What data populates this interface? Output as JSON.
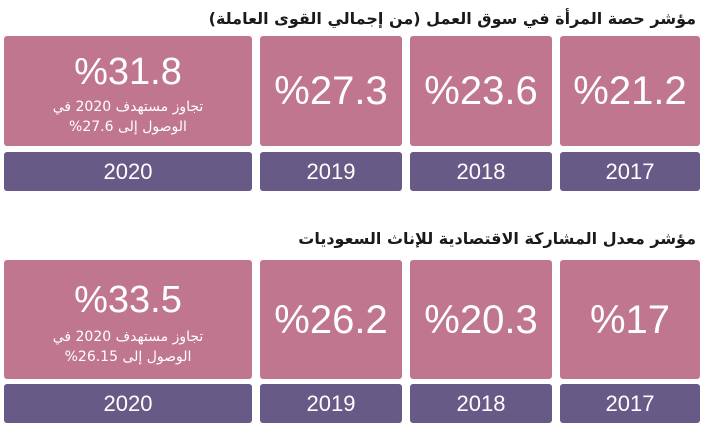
{
  "section1": {
    "title": "مؤشر حصة المرأة في سوق العمل (من إجمالي القوى العاملة)",
    "cards": [
      {
        "value": "%31.8",
        "note_line1": "تجاوز مستهدف 2020 في",
        "note_line2": "الوصول إلى 27.6%",
        "year": "2020"
      },
      {
        "value": "%27.3",
        "year": "2019"
      },
      {
        "value": "%23.6",
        "year": "2018"
      },
      {
        "value": "%21.2",
        "year": "2017"
      }
    ]
  },
  "section2": {
    "title": "مؤشر معدل المشاركة الاقتصادية للإناث السعوديات",
    "cards": [
      {
        "value": "%33.5",
        "note_line1": "تجاوز مستهدف 2020 في",
        "note_line2": "الوصول إلى 26.15%",
        "year": "2020"
      },
      {
        "value": "%26.2",
        "year": "2019"
      },
      {
        "value": "%20.3",
        "year": "2018"
      },
      {
        "value": "%17",
        "year": "2017"
      }
    ]
  },
  "colors": {
    "value_box": "#c0768f",
    "year_box": "#675a86",
    "text_on_box": "#ffffff"
  }
}
